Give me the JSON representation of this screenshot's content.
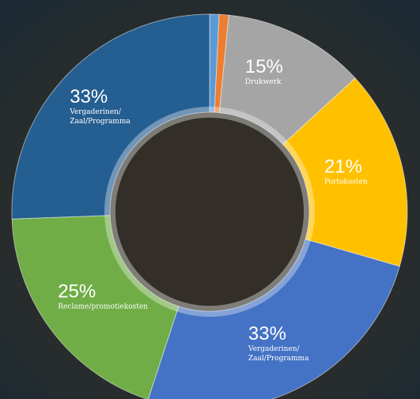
{
  "chart_data": {
    "type": "donut",
    "categories": [
      null,
      null,
      "Drukwerk",
      "Portokosten",
      [
        "Vergaderinen/",
        "Zaal/Programma"
      ],
      "Reclame/promotiekosten",
      [
        "Vergaderinen/",
        "Zaal/Programma"
      ]
    ],
    "values": [
      1,
      1,
      15,
      21,
      33,
      25,
      33
    ],
    "value_labels": [
      null,
      null,
      "15%",
      "21%",
      "33%",
      "25%",
      "33%"
    ],
    "colors": [
      "#5b9bd5",
      "#ed7d31",
      "#a5a5a5",
      "#ffc000",
      "#4472c4",
      "#70ad47",
      "#255e91"
    ]
  }
}
